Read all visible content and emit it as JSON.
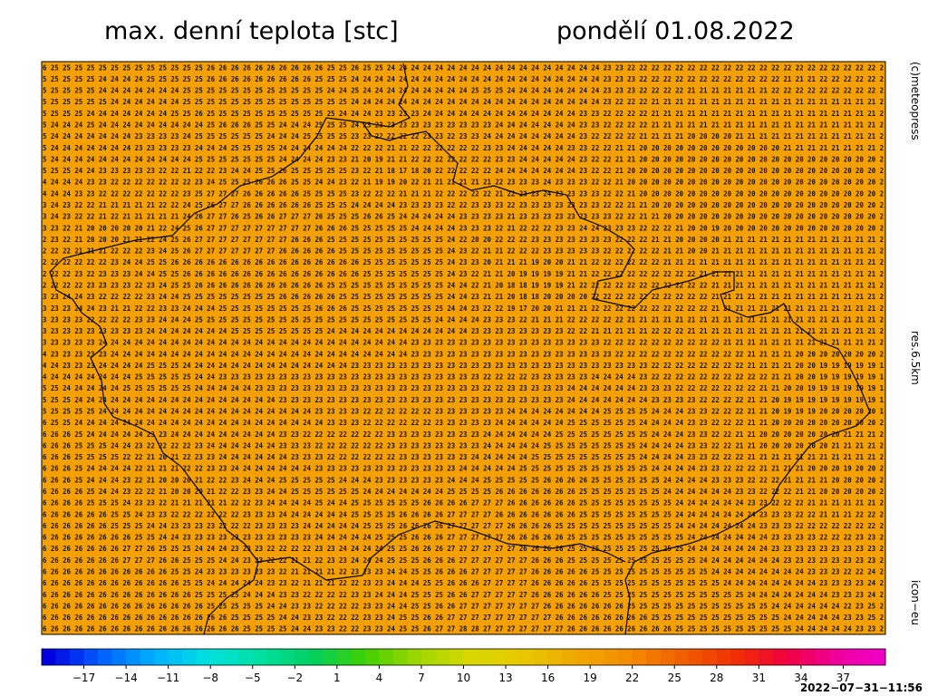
{
  "header": {
    "title": "max. denní teplota [stc]",
    "date": "pondělí 01.08.2022"
  },
  "side_labels": [
    "(c)meteopress",
    "res.6.5km",
    "icon−eu"
  ],
  "map": {
    "background": "#f4a000",
    "rows": [
      "6 25 25 25 25 25 25 25 25 25 25 25 25 25 26 26 26 26 26 26 26 26 26 26 25 25 26 25 25 24 24 24 24 24 24 24 24 24 24 24 24 24 24 24 24 24 24 23 23 22 22 22 22 22 22 22 22 22 22 22 22 22 22 22 22 22 22 22 22 22 2",
      "5 25 25 25 25 24 24 24 24 25 25 25 25 25 26 26 26 26 26 26 26 26 26 25 25 25 24 24 24 24 24 24 24 24 24 24 24 24 24 24 24 24 24 24 24 24 24 23 23 23 22 22 22 22 22 22 22 22 22 22 22 22 21 21 21 22 22 22 22 22 2",
      "5 25 25 25 25 24 24 24 24 24 24 24 25 25 25 25 25 25 25 25 25 25 25 25 24 24 25 24 24 24 24 24 24 24 24 24 25 25 25 24 24 24 24 24 24 24 24 23 23 23 22 22 22 22 21 21 21 21 21 21 21 22 22 22 22 22 22 22 22 22 2",
      "5 25 25 25 25 25 24 24 24 24 24 24 25 25 25 25 25 25 25 25 25 25 25 25 25 25 24 24 24 24 24 24 24 24 24 24 24 24 24 24 24 24 24 24 24 24 24 23 22 22 22 21 21 21 21 21 21 21 21 21 21 21 21 21 21 21 21 21 21 21 2",
      "5 25 25 25 24 24 24 24 24 24 24 25 25 26 25 25 25 25 25 25 25 25 25 25 25 24 24 24 23 23 23 23 24 24 24 24 24 24 24 24 24 24 24 24 24 23 23 22 22 22 22 21 21 21 21 21 21 21 21 21 21 21 21 21 21 21 21 21 21 21 2",
      "5 24 24 24 25 24 24 24 24 24 24 24 24 24 25 26 26 26 25 25 24 24 24 25 25 25 24 23 23 23 23 23 23 23 23 23 23 23 24 24 24 24 24 24 24 23 23 22 22 22 22 21 21 21 21 21 21 21 21 21 21 21 21 21 21 21 21 21 21 21 2",
      "5 24 24 24 24 24 24 24 23 23 23 23 24 25 25 25 25 25 25 24 24 24 25 25 25 25 23 23 22 22 22 22 23 23 22 23 23 24 24 24 24 24 24 24 24 23 22 22 22 22 21 21 21 21 20 20 20 20 21 21 21 21 21 21 21 21 21 21 21 21 2",
      "5 24 24 24 24 24 24 24 23 23 23 23 23 24 24 24 25 25 25 25 24 24 24 24 24 24 22 22 22 21 21 22 22 22 22 22 22 23 23 24 24 24 24 24 23 23 22 22 21 21 20 20 20 20 20 20 20 20 20 20 20 20 21 21 21 21 21 21 21 21 2",
      "5 24 24 24 24 24 24 24 24 24 24 24 24 25 25 25 25 25 25 25 24 24 24 24 23 23 21 20 19 21 21 22 22 22 22 22 22 22 23 23 24 24 24 24 24 23 22 22 21 21 20 20 20 20 20 20 20 20 20 20 20 20 20 20 20 20 20 20 20 20 2",
      "5 25 25 24 24 23 23 23 23 23 22 22 21 22 22 23 24 24 25 25 26 25 25 25 25 25 23 22 21 18 17 18 20 22 22 22 22 22 24 24 24 24 24 24 24 23 22 22 21 20 20 20 20 20 20 20 20 20 20 20 20 20 20 20 20 20 20 20 20 20 2",
      "4 24 24 24 23 23 22 22 22 22 22 22 22 23 24 25 25 25 26 26 26 25 25 24 24 23 22 21 19 19 20 22 21 21 21 21 21 21 22 23 23 23 24 23 23 23 22 22 21 20 20 20 20 20 20 20 20 20 20 20 20 20 20 20 20 20 20 20 20 20 2",
      "4 24 24 23 23 22 22 22 22 22 22 22 23 25 27 27 27 26 26 26 26 26 25 25 25 25 23 22 22 22 21 21 21 22 22 22 22 22 21 22 23 23 24 23 23 23 23 22 22 21 20 20 20 20 20 20 20 20 20 20 20 20 20 20 20 20 20 20 20 20 2",
      "3 24 23 22 22 21 21 21 21 21 22 22 24 25 26 27 27 26 26 26 26 26 26 25 25 25 24 24 24 24 23 23 23 23 22 22 23 23 23 22 23 23 23 23 23 23 23 22 22 21 21 20 20 20 20 20 20 20 20 20 20 20 20 20 20 20 20 20 20 20 2",
      "3 24 23 22 22 21 22 21 21 21 21 21 24 26 27 27 26 25 26 26 27 27 27 26 25 25 25 26 26 25 24 24 24 24 24 23 23 23 23 21 23 23 23 23 23 23 23 23 22 22 21 21 20 20 20 20 20 20 20 20 20 20 20 20 20 20 20 20 20 20 2",
      "3 23 22 21 20 20 20 20 20 21 22 24 25 26 27 27 27 27 27 27 27 27 27 26 26 26 25 25 25 25 25 24 24 24 24 23 23 23 22 21 22 22 22 23 23 24 24 23 23 23 22 22 22 21 20 20 19 20 20 20 20 20 20 20 20 20 20 20 20 20 2",
      "2 23 22 21 20 20 20 21 21 22 24 25 26 27 27 27 27 27 27 27 27 26 26 26 25 25 25 25 25 25 25 25 25 25 24 22 20 20 22 22 22 23 23 23 23 23 23 23 22 22 22 21 21 20 20 20 20 21 21 21 21 21 21 21 21 21 21 21 21 21 2",
      "2 22 22 21 21 21 22 22 22 23 24 25 26 27 27 27 27 27 27 27 26 26 26 26 26 25 25 25 25 25 25 25 25 25 24 23 22 21 21 22 22 22 23 23 23 23 23 22 22 22 22 22 21 21 20 20 21 21 21 21 21 21 21 21 21 21 21 21 21 21 2",
      "2 22 22 22 22 22 23 24 24 25 25 26 26 26 26 26 26 26 26 26 26 26 26 26 26 26 26 25 25 25 25 25 25 25 24 23 23 20 21 21 21 19 20 20 21 21 22 22 22 22 22 22 21 21 21 21 21 21 21 21 21 21 21 21 21 21 21 21 21 21 2",
      "2 22 22 23 22 23 23 23 24 24 25 25 26 26 26 26 26 26 26 26 26 26 26 26 26 26 26 25 25 25 25 25 25 25 24 23 22 21 21 20 19 19 19 19 21 21 22 22 22 22 22 22 22 22 22 21 21 21 21 21 21 21 21 21 21 21 21 21 21 21 2",
      "2 22 22 22 23 23 23 23 22 23 24 25 25 26 26 26 26 26 26 26 26 26 26 26 25 25 25 25 25 25 25 25 25 25 24 24 22 21 20 18 18 19 19 19 21 22 22 22 22 22 22 22 22 22 22 22 21 21 21 21 21 21 21 21 21 21 21 21 21 21 2",
      "3 23 24 24 23 22 22 22 22 23 24 24 25 25 25 25 25 25 25 25 26 26 26 26 26 25 25 25 25 25 25 25 25 25 24 24 23 21 21 20 18 18 20 20 20 20 22 22 22 22 22 22 22 22 22 22 21 21 21 21 21 21 21 21 21 21 21 21 21 21 2",
      "3 23 23 24 24 23 21 21 22 22 23 23 24 24 24 25 25 25 25 25 25 25 25 26 26 26 25 25 25 25 25 25 25 25 24 24 23 22 22 19 17 20 20 21 21 21 22 22 22 22 22 22 22 22 22 22 21 21 21 21 21 21 21 21 21 21 21 21 21 21 2",
      "3 23 23 23 22 22 22 22 23 23 24 24 24 25 25 25 25 25 25 25 25 25 25 25 25 25 25 25 25 25 25 25 25 24 24 24 24 23 23 23 22 21 21 21 22 22 22 22 22 21 21 21 21 21 21 21 21 21 21 21 21 21 21 21 21 21 21 21 21 21 2",
      "3 23 23 23 23 23 23 23 23 24 24 24 24 24 24 24 25 25 25 25 25 25 25 25 24 24 24 24 24 24 24 24 24 24 24 24 23 23 23 23 23 23 23 23 22 22 21 21 21 21 21 22 22 22 21 21 21 21 21 21 21 21 21 21 21 21 21 21 21 21 2",
      "3 23 23 23 23 24 24 24 24 24 24 24 24 24 24 24 24 24 24 24 24 24 24 24 24 24 24 24 24 24 24 23 23 23 23 23 23 23 23 23 23 23 23 23 23 23 23 22 22 22 22 22 22 22 22 22 22 21 21 21 21 21 21 21 21 21 21 21 21 21 2",
      "4 23 23 23 23 23 24 24 24 24 24 24 24 24 24 24 24 24 24 24 24 24 24 24 24 24 24 24 24 24 24 23 23 23 23 23 23 23 23 23 23 23 23 23 23 23 23 23 22 22 22 22 22 22 22 22 22 22 22 21 21 21 21 20 20 20 20 20 20 20 2",
      "4 24 23 23 23 24 24 24 24 25 25 25 24 24 24 24 24 24 24 24 24 24 24 24 24 24 23 23 23 23 23 23 23 23 23 23 23 23 23 23 23 23 23 23 23 23 23 23 23 23 23 22 22 22 22 22 22 22 22 21 21 21 21 20 20 19 19 19 19 19 1",
      "4 24 24 24 24 24 24 24 25 25 25 25 25 24 24 23 23 23 23 23 23 23 23 23 23 23 23 23 23 23 23 23 23 23 23 23 23 22 22 22 22 23 23 23 23 23 24 24 24 24 23 22 22 22 22 22 22 22 22 22 22 21 21 20 20 19 19 19 19 19 1",
      "5 25 24 24 24 24 24 25 25 25 25 25 25 24 24 24 24 24 23 23 23 23 23 23 23 23 23 23 23 23 23 23 23 23 23 23 23 22 22 23 23 23 23 23 24 24 24 24 24 24 23 23 23 22 22 22 22 22 22 22 21 21 20 20 19 19 19 19 19 19 1",
      "5 25 25 24 24 24 24 24 24 24 24 24 24 24 24 24 24 24 24 24 23 23 23 23 23 23 23 23 23 23 23 23 23 23 23 23 23 23 23 23 23 23 23 23 24 24 24 24 24 24 24 23 23 23 23 22 22 22 22 21 21 20 19 19 19 19 19 19 19 19 1",
      "5 25 25 25 25 24 24 24 24 24 24 24 24 24 24 24 24 24 24 24 24 24 24 23 23 23 23 22 22 22 22 22 22 23 23 23 23 23 23 24 24 24 24 24 24 24 24 25 25 25 25 24 24 24 23 23 22 22 22 21 21 20 19 19 19 20 20 20 20 20 1",
      "6 25 25 24 24 24 24 24 24 24 24 24 24 24 24 24 24 24 24 24 24 24 24 24 23 23 23 22 22 22 22 22 22 23 23 23 23 23 24 24 24 24 24 24 25 25 25 25 25 25 24 24 24 24 23 23 22 22 22 21 21 20 20 20 20 20 20 20 20 20 2",
      "6 26 26 25 24 24 24 24 24 23 23 24 24 24 24 24 24 24 24 24 23 23 22 22 22 22 22 22 22 23 23 23 23 23 23 23 23 24 24 24 24 24 24 25 25 25 25 25 25 25 25 24 24 24 23 23 22 22 21 21 20 20 20 20 20 20 20 21 21 21 2",
      "6 26 26 25 25 25 24 24 23 22 22 22 22 23 24 24 24 24 24 24 23 23 23 22 22 22 22 22 22 23 23 23 23 23 23 23 23 24 24 24 24 24 25 25 25 25 25 25 25 25 24 24 24 24 23 23 22 22 21 21 20 20 20 20 20 20 21 21 21 21 2",
      "6 26 26 25 25 25 25 22 22 21 20 21 22 23 23 24 24 24 24 24 24 23 23 23 22 22 22 22 22 22 23 23 23 23 23 23 24 24 24 24 24 25 25 25 25 25 25 25 25 25 24 24 24 24 23 23 22 22 22 21 21 21 21 21 21 21 21 21 21 21 2",
      "6 26 26 25 24 24 24 24 22 21 21 21 22 22 23 23 24 24 24 24 24 24 24 23 23 23 23 23 23 23 23 23 23 23 23 24 24 24 24 24 25 25 25 25 25 25 25 25 25 25 25 24 24 24 24 23 23 22 22 22 21 21 21 21 20 20 20 19 20 20 2",
      "6 26 26 25 24 24 24 23 22 21 20 20 20 21 22 22 23 24 24 24 25 25 25 25 25 24 24 24 23 23 23 23 23 23 24 24 24 25 25 25 25 25 26 26 26 26 25 25 25 25 25 25 24 24 24 24 23 23 23 22 22 22 21 21 21 21 20 20 20 20 2",
      "6 26 26 26 25 24 24 23 22 22 21 20 20 20 21 22 22 23 23 24 24 25 25 25 25 25 25 24 24 24 24 24 24 24 25 25 25 25 26 26 26 26 26 26 26 25 25 25 25 25 25 25 24 24 24 24 24 24 23 23 22 22 22 21 21 20 20 20 20 20 2",
      "6 26 26 26 25 25 25 24 23 23 22 21 21 21 21 21 22 22 23 24 24 24 24 25 24 24 25 25 25 25 25 25 26 26 26 26 27 27 27 26 26 26 26 26 26 25 25 25 25 25 25 25 25 24 24 24 24 24 24 23 23 22 22 22 21 21 21 21 21 21 2",
      "6 26 26 26 26 26 25 25 24 23 23 22 22 22 22 22 22 23 23 23 24 24 24 24 24 24 25 25 25 25 26 26 26 26 27 27 27 27 26 26 26 26 26 26 26 25 25 25 25 25 25 25 25 24 24 24 24 24 24 24 23 23 23 22 22 21 21 21 22 22 2",
      "6 26 26 26 26 26 25 25 25 24 24 23 23 23 23 22 22 22 23 23 23 23 24 24 24 24 24 25 25 25 26 26 26 26 27 27 27 27 27 26 26 26 26 25 25 25 25 25 25 25 25 25 25 24 24 24 24 24 24 24 23 23 23 22 22 22 22 22 22 22 2",
      "6 26 26 26 26 26 26 26 25 25 24 24 23 23 23 23 23 23 23 23 23 23 23 24 24 24 24 24 25 25 25 26 26 26 27 27 27 27 27 26 26 26 26 26 25 25 25 25 25 25 25 25 25 25 24 24 24 24 24 24 24 23 23 23 23 22 22 22 23 23 2",
      "6 26 26 26 26 26 26 27 27 26 25 25 25 24 24 24 23 23 23 22 22 22 22 23 23 24 24 24 24 25 25 26 26 26 27 27 27 27 27 27 26 26 26 26 25 25 25 25 25 25 25 25 25 25 24 24 24 24 24 24 24 23 23 23 23 23 23 23 23 23 2",
      "6 26 26 26 26 26 26 27 27 27 26 26 25 25 25 24 24 23 23 22 22 21 21 22 23 23 24 24 24 25 25 25 26 26 26 27 27 27 27 27 27 26 26 26 25 25 25 25 25 25 25 25 25 25 25 24 24 24 24 24 24 24 23 23 23 23 23 23 23 23 2",
      "6 26 26 26 26 26 26 26 26 26 26 25 25 24 23 23 23 23 23 23 22 21 21 21 21 22 23 23 23 24 24 25 25 26 26 26 27 27 27 27 27 26 26 26 26 26 25 25 25 25 25 25 25 25 25 25 24 24 24 24 24 24 24 24 23 23 23 22 22 24 2",
      "6 26 26 26 26 26 26 26 26 26 26 26 25 25 24 24 24 24 24 23 23 22 21 21 21 22 22 23 23 24 24 24 25 25 26 26 26 27 27 27 27 26 26 26 26 26 25 25 25 25 25 25 25 25 25 25 25 24 24 24 24 24 24 24 24 23 23 23 23 24 2",
      "6 26 26 26 26 26 26 26 26 26 26 26 26 25 25 25 25 24 24 24 23 23 22 22 22 22 23 23 24 24 24 25 25 25 26 26 27 27 27 27 27 26 26 26 26 26 26 25 25 25 25 25 25 25 25 25 25 25 25 24 24 24 24 24 24 24 23 23 23 24 2",
      "6 26 26 26 26 26 26 26 26 26 26 26 26 26 25 25 25 25 25 24 24 23 23 22 22 22 22 23 23 24 24 25 25 26 26 27 27 27 27 27 27 27 26 26 26 26 26 26 26 25 25 25 25 25 25 25 25 25 25 25 25 24 24 24 24 24 24 22 23 25 2",
      "6 26 26 26 26 26 26 26 26 26 26 26 26 26 26 26 25 25 25 25 24 24 23 23 22 22 22 23 23 24 25 25 26 26 27 27 27 27 27 27 27 27 27 26 26 26 26 26 26 26 26 25 25 25 25 25 25 25 25 25 25 25 24 24 24 24 24 23 23 25 2",
      "6 26 26 26 26 26 26 26 26 26 26 26 26 26 26 26 26 25 25 25 25 24 24 23 23 22 22 23 23 24 25 25 26 27 27 28 28 27 27 27 27 27 27 27 26 26 26 26 26 26 26 26 26 25 25 25 25 25 25 25 25 25 25 24 24 24 24 24 23 23 2"
    ]
  },
  "colorbar": {
    "range": [
      -20,
      40
    ],
    "step": 1,
    "colors": [
      "#0000e0",
      "#0060ff",
      "#00b0ff",
      "#00e0e0",
      "#00e0a0",
      "#00d060",
      "#40d000",
      "#a0d800",
      "#d8d800",
      "#e8c800",
      "#f0a800",
      "#f48c00",
      "#f06000",
      "#f03000",
      "#f00040",
      "#f000a0",
      "#f000d0"
    ],
    "ticks": [
      {
        "value": -17,
        "label": "−17"
      },
      {
        "value": -14,
        "label": "−14"
      },
      {
        "value": -11,
        "label": "−11"
      },
      {
        "value": -8,
        "label": "−8"
      },
      {
        "value": -5,
        "label": "−5"
      },
      {
        "value": -2,
        "label": "−2"
      },
      1,
      4,
      7,
      10,
      13,
      16,
      19,
      22,
      25,
      28,
      31,
      34,
      37
    ]
  },
  "timestamp": "2022−07−31−11:56"
}
